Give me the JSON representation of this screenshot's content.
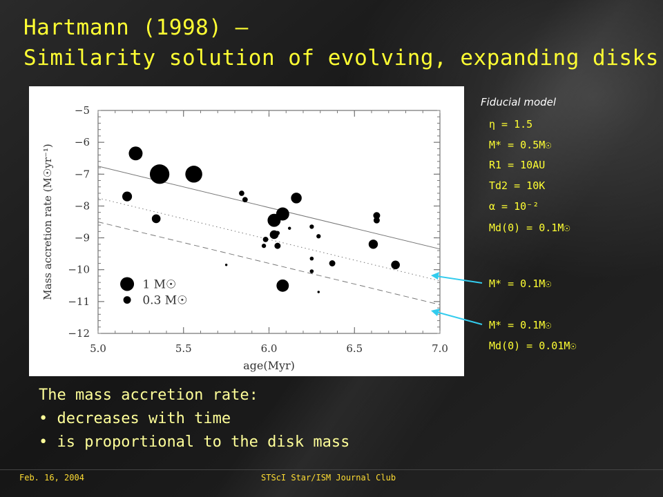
{
  "slide": {
    "title_line1": "Hartmann (1998) –",
    "title_line2": "Similarity solution of evolving, expanding disks",
    "body_heading": "The mass accretion rate:",
    "bullets": [
      "decreases with time",
      "is proportional to the disk mass"
    ],
    "footer_date": "Feb. 16, 2004",
    "footer_center": "STScI Star/ISM Journal Club",
    "accent_color": "#ffff33",
    "arrow_color": "#33ccee"
  },
  "params": {
    "header": "Fiducial model",
    "lines": [
      "η = 1.5",
      "M* = 0.5M☉",
      "R1 = 10AU",
      "Td2 = 10K",
      "α = 10⁻²",
      "Md(0) = 0.1M☉"
    ],
    "label_a": "M* = 0.1M☉",
    "label_b1": "M* = 0.1M☉",
    "label_b2": "Md(0) = 0.01M☉"
  },
  "chart_data": {
    "type": "scatter",
    "xlabel": "age(Myr)",
    "ylabel": "Mass accretion rate (M☉yr⁻¹)",
    "xlim": [
      5.0,
      7.0
    ],
    "ylim": [
      -12,
      -5
    ],
    "x_ticks": [
      "5.0",
      "5.5",
      "6.0",
      "6.5",
      "7.0"
    ],
    "y_ticks": [
      "−5",
      "−6",
      "−7",
      "−8",
      "−9",
      "−10",
      "−11",
      "−12"
    ],
    "legend": {
      "items": [
        {
          "label": "1 M☉",
          "size": 1.0
        },
        {
          "label": "0.3 M☉",
          "size": 0.3
        }
      ]
    },
    "points": [
      {
        "x": 5.22,
        "y": -6.35,
        "m": 1.0
      },
      {
        "x": 5.36,
        "y": -7.0,
        "m": 2.0
      },
      {
        "x": 5.56,
        "y": -7.0,
        "m": 1.5
      },
      {
        "x": 5.17,
        "y": -7.7,
        "m": 0.5
      },
      {
        "x": 5.34,
        "y": -8.4,
        "m": 0.4
      },
      {
        "x": 5.84,
        "y": -7.6,
        "m": 0.15
      },
      {
        "x": 5.86,
        "y": -7.8,
        "m": 0.15
      },
      {
        "x": 6.16,
        "y": -7.75,
        "m": 0.6
      },
      {
        "x": 6.08,
        "y": -8.25,
        "m": 0.9
      },
      {
        "x": 6.03,
        "y": -8.45,
        "m": 0.9
      },
      {
        "x": 6.12,
        "y": -8.7,
        "m": 0.05
      },
      {
        "x": 6.03,
        "y": -8.9,
        "m": 0.4
      },
      {
        "x": 5.98,
        "y": -9.05,
        "m": 0.15
      },
      {
        "x": 6.05,
        "y": -8.85,
        "m": 0.1
      },
      {
        "x": 5.97,
        "y": -9.25,
        "m": 0.1
      },
      {
        "x": 6.05,
        "y": -9.25,
        "m": 0.2
      },
      {
        "x": 6.25,
        "y": -8.65,
        "m": 0.1
      },
      {
        "x": 6.29,
        "y": -8.95,
        "m": 0.1
      },
      {
        "x": 6.25,
        "y": -9.65,
        "m": 0.08
      },
      {
        "x": 6.37,
        "y": -9.8,
        "m": 0.2
      },
      {
        "x": 6.25,
        "y": -10.05,
        "m": 0.08
      },
      {
        "x": 6.29,
        "y": -10.7,
        "m": 0.03
      },
      {
        "x": 6.08,
        "y": -10.5,
        "m": 0.8
      },
      {
        "x": 5.75,
        "y": -9.85,
        "m": 0.03
      },
      {
        "x": 6.63,
        "y": -8.3,
        "m": 0.25
      },
      {
        "x": 6.63,
        "y": -8.45,
        "m": 0.2
      },
      {
        "x": 6.61,
        "y": -9.2,
        "m": 0.45
      },
      {
        "x": 6.74,
        "y": -9.85,
        "m": 0.4
      }
    ],
    "lines": [
      {
        "style": "solid",
        "points": [
          [
            5.0,
            -6.75
          ],
          [
            7.0,
            -9.35
          ]
        ]
      },
      {
        "style": "dotted",
        "points": [
          [
            5.0,
            -7.75
          ],
          [
            7.0,
            -10.35
          ]
        ]
      },
      {
        "style": "dashed",
        "points": [
          [
            5.0,
            -8.5
          ],
          [
            7.0,
            -11.1
          ]
        ]
      }
    ]
  }
}
